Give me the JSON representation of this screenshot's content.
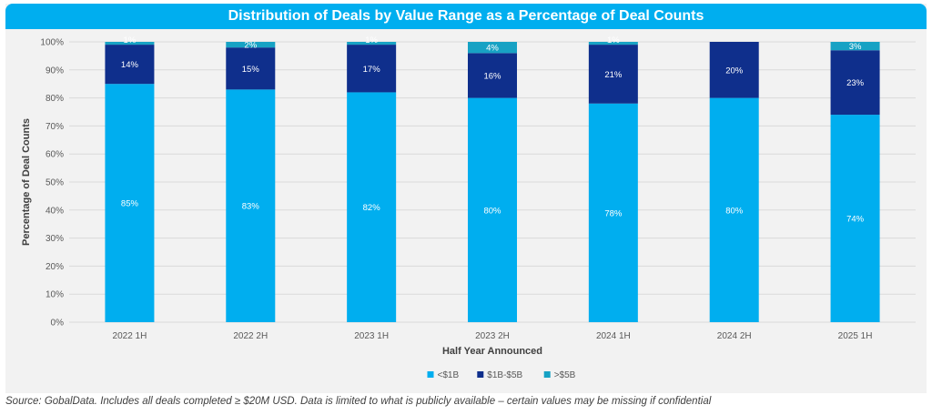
{
  "chart_data": {
    "type": "bar",
    "stacked": true,
    "title": "Distribution of Deals by Value Range as a Percentage of Deal Counts",
    "xlabel": "Half Year Announced",
    "ylabel": "Percentage of Deal Counts",
    "ylim": [
      0,
      100
    ],
    "yticks": [
      "0%",
      "10%",
      "20%",
      "30%",
      "40%",
      "50%",
      "60%",
      "70%",
      "80%",
      "90%",
      "100%"
    ],
    "categories": [
      "2022 1H",
      "2022 2H",
      "2023 1H",
      "2023 2H",
      "2024 1H",
      "2024 2H",
      "2025 1H"
    ],
    "series": [
      {
        "name": "<$1B",
        "color": "#00aeef",
        "values": [
          85,
          83,
          82,
          80,
          78,
          80,
          74
        ],
        "labels": [
          "85%",
          "83%",
          "82%",
          "80%",
          "78%",
          "80%",
          "74%"
        ]
      },
      {
        "name": "$1B-$5B",
        "color": "#0f2f8c",
        "values": [
          14,
          15,
          17,
          16,
          21,
          20,
          23
        ],
        "labels": [
          "14%",
          "15%",
          "17%",
          "16%",
          "21%",
          "20%",
          "23%"
        ]
      },
      {
        "name": ">$5B",
        "color": "#17a2c4",
        "values": [
          1,
          2,
          1,
          4,
          1,
          0,
          3
        ],
        "labels": [
          "1%",
          "2%",
          "1%",
          "4%",
          "1%",
          "",
          "3%"
        ]
      }
    ],
    "grid": true,
    "legend_position": "bottom"
  },
  "footer": {
    "source": "Source: GobalData. Includes all deals completed ≥ $20M USD. Data is limited to what is publicly available – certain values may be missing if confidential"
  }
}
